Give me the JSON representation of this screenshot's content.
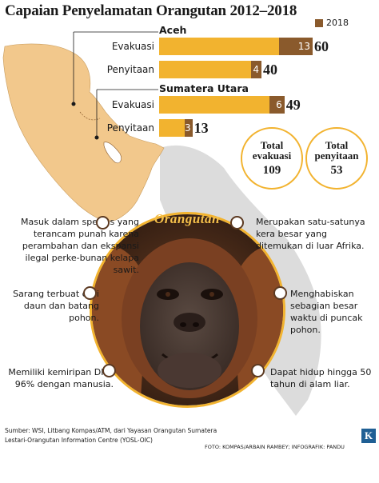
{
  "title": "Capaian Penyelamatan Orangutan 2012–2018",
  "legend": {
    "label": "2018",
    "color": "#8a5a2c"
  },
  "colors": {
    "total_bar": "#f2b32f",
    "bar_2018": "#8a5a2c",
    "map": "#f2c88c",
    "map_bg": "#d9d9d9"
  },
  "chart_data": {
    "type": "bar",
    "orientation": "horizontal",
    "stacked_overlay": true,
    "groups": [
      {
        "name": "Aceh",
        "categories": [
          {
            "label": "Evakuasi",
            "total": 60,
            "year_2018": 13
          },
          {
            "label": "Penyitaan",
            "total": 40,
            "year_2018": 4
          }
        ]
      },
      {
        "name": "Sumatera Utara",
        "categories": [
          {
            "label": "Evakuasi",
            "total": 49,
            "year_2018": 6
          },
          {
            "label": "Penyitaan",
            "total": 13,
            "year_2018": 3
          }
        ]
      }
    ],
    "series": [
      {
        "name": "2018"
      }
    ],
    "xlim": [
      0,
      60
    ]
  },
  "totals": {
    "evakuasi": {
      "label": "Total evakuasi",
      "value": "109"
    },
    "penyitaan": {
      "label": "Total penyitaan",
      "value": "53"
    }
  },
  "photo_label": "Orangutan",
  "facts": [
    {
      "text": "Masuk dalam spesies yang terancam punah karena perambahan dan ekspansi ilegal perke-bunan kelapa sawit.",
      "side": "left"
    },
    {
      "text": "Sarang terbuat dari daun dan batang pohon.",
      "side": "left"
    },
    {
      "text": "Memiliki kemiripan DNA 96% dengan manusia.",
      "side": "left"
    },
    {
      "text": "Merupakan satu-satunya kera besar yang ditemukan di luar Afrika.",
      "side": "right"
    },
    {
      "text": "Menghabiskan sebagian besar waktu di puncak pohon.",
      "side": "right"
    },
    {
      "text": "Dapat hidup hingga 50 tahun di alam liar.",
      "side": "right"
    }
  ],
  "source": "Sumber: WSI, Litbang Kompas/ATM, dari Yayasan Orangutan Sumatera Lestari-Orangutan Information Centre (YOSL-OIC)",
  "credit": "FOTO: KOMPAS/ARBAIN RAMBEY; INFOGRAFIK: PANDU",
  "logo": "K"
}
